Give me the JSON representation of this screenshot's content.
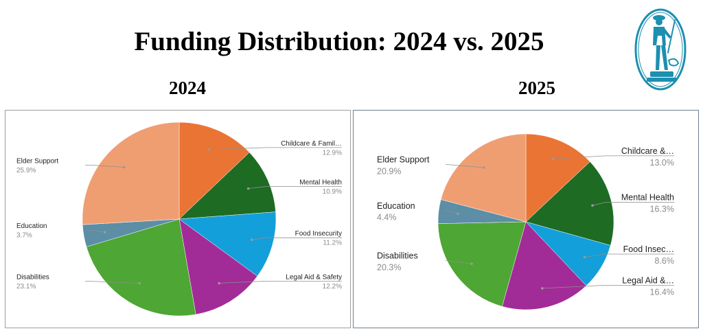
{
  "title": "Funding Distribution: 2024 vs. 2025",
  "logo": {
    "icon": "minuteman-statue-logo",
    "color": "#1d8fb0"
  },
  "chart_data": [
    {
      "type": "pie",
      "title": "2024",
      "start_angle_deg": 0,
      "direction": "clockwise",
      "slices": [
        {
          "label": "Childcare & Famil…",
          "value": 12.9,
          "pct_label": "12.9%",
          "color": "#ea7434"
        },
        {
          "label": "Mental Health",
          "value": 10.9,
          "pct_label": "10.9%",
          "color": "#1e6b24"
        },
        {
          "label": "Food Insecurity",
          "value": 11.2,
          "pct_label": "11.2%",
          "color": "#139fd9"
        },
        {
          "label": "Legal Aid & Safety",
          "value": 12.2,
          "pct_label": "12.2%",
          "color": "#a22c97"
        },
        {
          "label": "Disabilities",
          "value": 23.1,
          "pct_label": "23.1%",
          "color": "#4ea634"
        },
        {
          "label": "Education",
          "value": 3.7,
          "pct_label": "3.7%",
          "color": "#5c8ea6"
        },
        {
          "label": "Elder Support",
          "value": 25.9,
          "pct_label": "25.9%",
          "color": "#ef9e72"
        }
      ]
    },
    {
      "type": "pie",
      "title": "2025",
      "start_angle_deg": 0,
      "direction": "clockwise",
      "slices": [
        {
          "label": "Childcare &…",
          "value": 13.0,
          "pct_label": "13.0%",
          "color": "#ea7434"
        },
        {
          "label": "Mental Health",
          "value": 16.3,
          "pct_label": "16.3%",
          "color": "#1e6b24"
        },
        {
          "label": "Food Insec…",
          "value": 8.6,
          "pct_label": "8.6%",
          "color": "#139fd9"
        },
        {
          "label": "Legal Aid &…",
          "value": 16.4,
          "pct_label": "16.4%",
          "color": "#a22c97"
        },
        {
          "label": "Disabilities",
          "value": 20.3,
          "pct_label": "20.3%",
          "color": "#4ea634"
        },
        {
          "label": "Education",
          "value": 4.4,
          "pct_label": "4.4%",
          "color": "#5c8ea6"
        },
        {
          "label": "Elder Support",
          "value": 20.9,
          "pct_label": "20.9%",
          "color": "#ef9e72"
        }
      ]
    }
  ]
}
